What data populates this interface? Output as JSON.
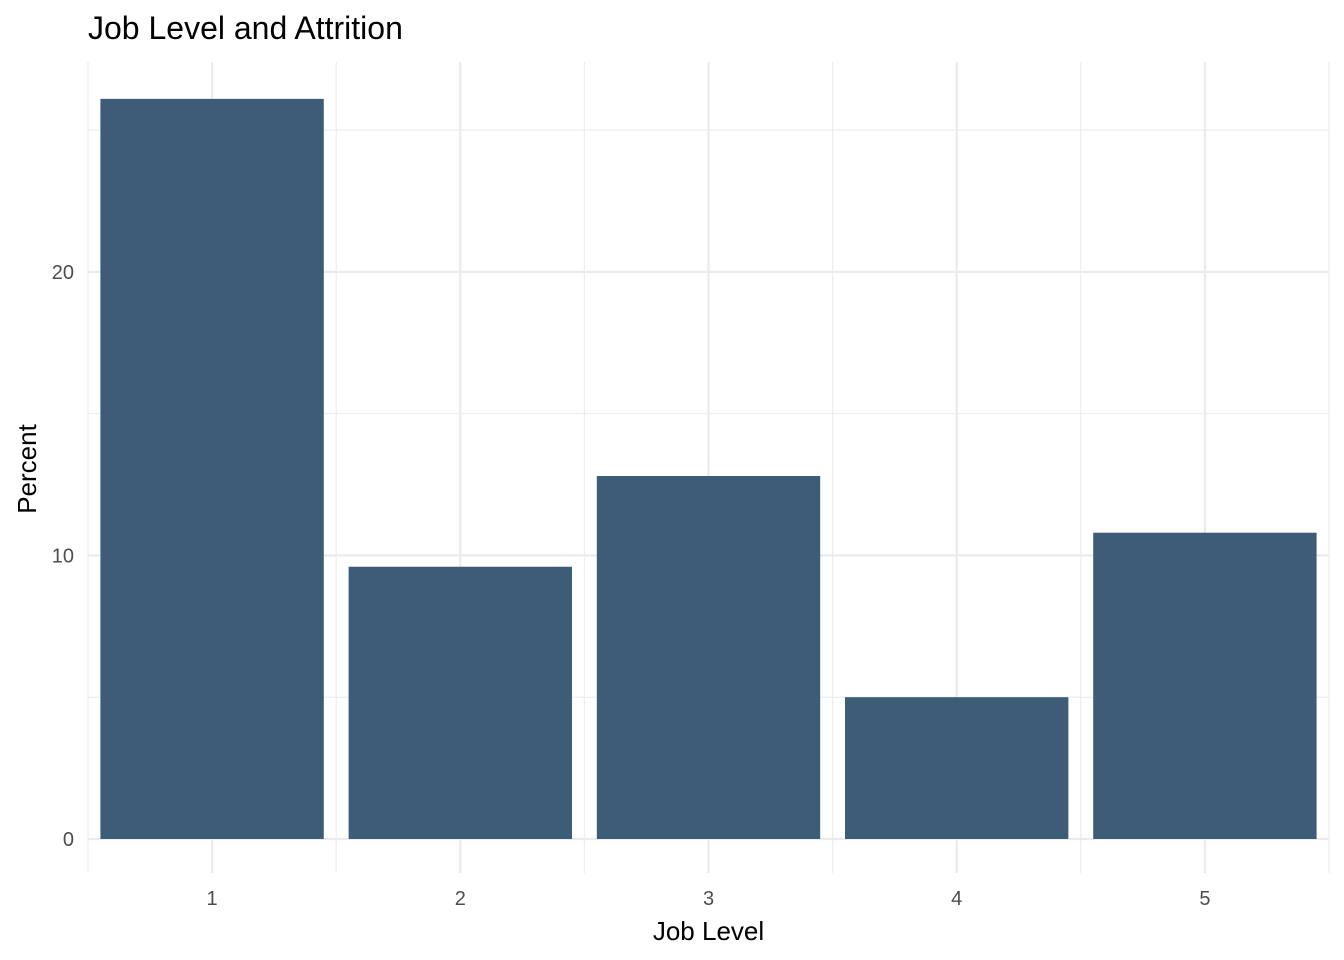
{
  "chart_data": {
    "type": "bar",
    "title": "Job Level and Attrition",
    "xlabel": "Job Level",
    "ylabel": "Percent",
    "categories": [
      "1",
      "2",
      "3",
      "4",
      "5"
    ],
    "values": [
      26.1,
      9.6,
      12.8,
      5.0,
      10.8
    ],
    "ylim": [
      -1.2,
      27.4
    ],
    "yticks": [
      0,
      10,
      20
    ],
    "ytick_labels": [
      "0",
      "10",
      "20"
    ],
    "bar_color": "#3c5c78",
    "grid": true,
    "legend": "none"
  }
}
